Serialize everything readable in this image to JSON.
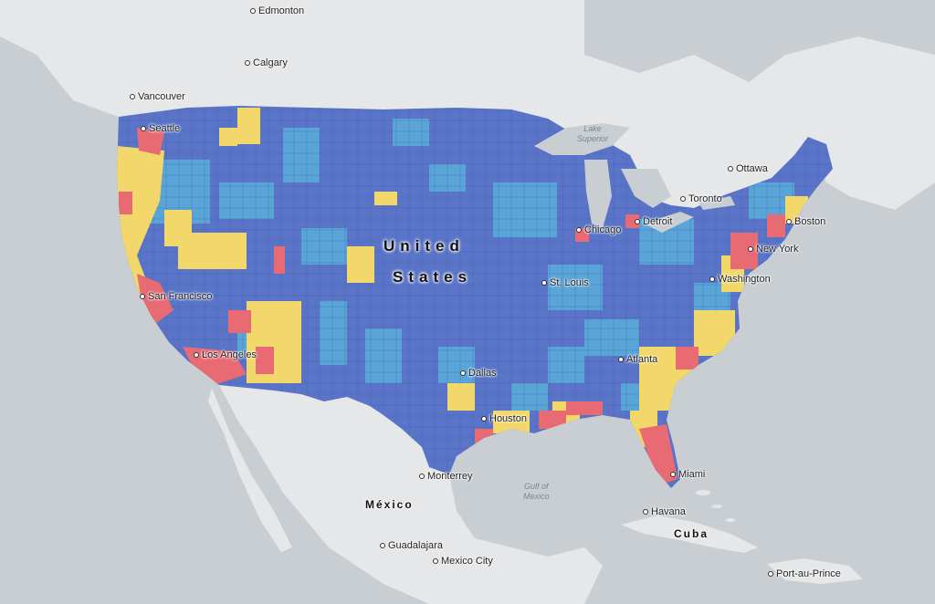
{
  "map": {
    "colors": {
      "water": "#c9ced3",
      "land": "#e6e7e8",
      "blue": "#5a74c8",
      "lightblue": "#5aa5d8",
      "yellow": "#f2d86a",
      "red": "#e86a72"
    },
    "country_labels": {
      "us_line1": "United",
      "us_line2": "States",
      "mexico": "México",
      "cuba": "Cuba"
    },
    "water_labels": {
      "lake_superior": "Lake\nSuperior",
      "gulf_of_mexico": "Gulf of\nMexico"
    },
    "cities": {
      "edmonton": "Edmonton",
      "calgary": "Calgary",
      "vancouver": "Vancouver",
      "seattle": "Seattle",
      "ottawa": "Ottawa",
      "toronto": "Toronto",
      "detroit": "Detroit",
      "chicago": "Chicago",
      "boston": "Boston",
      "new_york": "New York",
      "washington": "Washington",
      "st_louis": "St. Louis",
      "san_francisco": "San Francisco",
      "los_angeles": "Los Angeles",
      "dallas": "Dallas",
      "atlanta": "Atlanta",
      "houston": "Houston",
      "miami": "Miami",
      "monterrey": "Monterrey",
      "havana": "Havana",
      "guadalajara": "Guadalajara",
      "mexico_city": "Mexico City",
      "port_au_prince": "Port-au-Prince"
    }
  }
}
